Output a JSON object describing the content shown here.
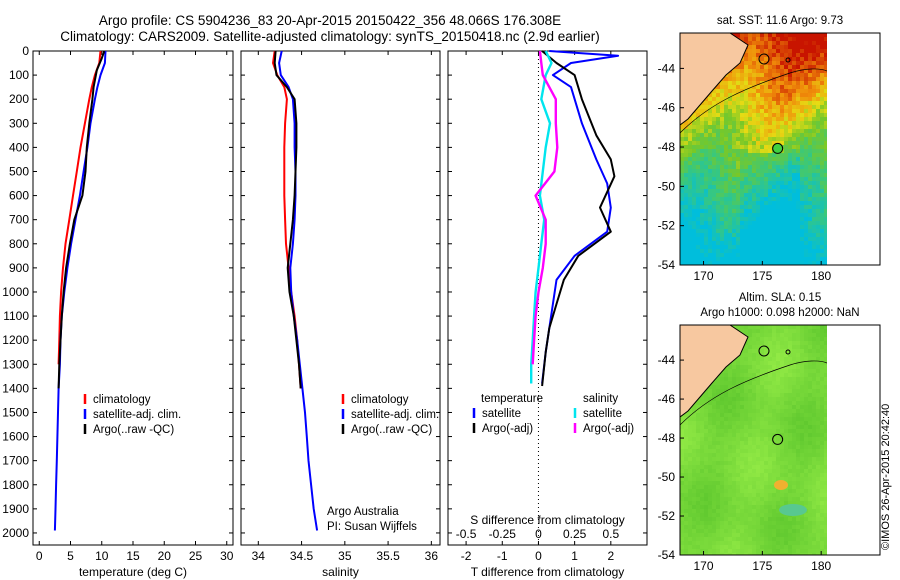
{
  "header": {
    "title_line1": "Argo profile: CS 5904236_83 20-Apr-2015 20150422_356 48.066S 176.308E",
    "title_line2": "Climatology: CARS2009. Satellite-adjusted climatology: synTS_20150418.nc (2.9d earlier)"
  },
  "footer_stamp": "©IMOS 26-Apr-2015 20:42:40",
  "colors": {
    "climatology": "#ff0000",
    "satellite": "#0000ff",
    "argo": "#000000",
    "satellite_diff": "#00e5ee",
    "argo_diff": "#ff00ff"
  },
  "chart_data": [
    {
      "id": "temperature",
      "type": "line",
      "xlabel": "temperature (deg C)",
      "ylabel": "",
      "xlim": [
        -1,
        31
      ],
      "ylim": [
        2050,
        0
      ],
      "xticks": [
        "0",
        "5",
        "10",
        "15",
        "20",
        "25",
        "30"
      ],
      "yticks": [
        "0",
        "100",
        "200",
        "300",
        "400",
        "500",
        "600",
        "700",
        "800",
        "900",
        "1000",
        "1100",
        "1200",
        "1300",
        "1400",
        "1500",
        "1600",
        "1700",
        "1800",
        "1900",
        "2000"
      ],
      "legend": [
        "climatology",
        "satellite-adj. clim.",
        "Argo(..raw -QC)"
      ],
      "series": [
        {
          "name": "climatology",
          "color": "#ff0000",
          "points": [
            [
              9.8,
              0
            ],
            [
              9.6,
              50
            ],
            [
              8.9,
              100
            ],
            [
              8.4,
              150
            ],
            [
              8.0,
              200
            ],
            [
              7.3,
              300
            ],
            [
              6.6,
              400
            ],
            [
              6.0,
              500
            ],
            [
              5.4,
              600
            ],
            [
              4.8,
              700
            ],
            [
              4.2,
              800
            ],
            [
              3.8,
              900
            ],
            [
              3.5,
              1000
            ],
            [
              3.3,
              1100
            ],
            [
              3.2,
              1200
            ],
            [
              3.1,
              1300
            ]
          ]
        },
        {
          "name": "satellite-adj. clim.",
          "color": "#0000ff",
          "points": [
            [
              10.6,
              0
            ],
            [
              10.5,
              50
            ],
            [
              9.8,
              100
            ],
            [
              9.3,
              150
            ],
            [
              8.9,
              200
            ],
            [
              8.2,
              300
            ],
            [
              7.7,
              400
            ],
            [
              7.1,
              500
            ],
            [
              6.5,
              600
            ],
            [
              5.8,
              700
            ],
            [
              5.1,
              800
            ],
            [
              4.5,
              900
            ],
            [
              4.0,
              1000
            ],
            [
              3.6,
              1100
            ],
            [
              3.4,
              1200
            ],
            [
              3.3,
              1300
            ],
            [
              3.1,
              1400
            ],
            [
              3.0,
              1500
            ],
            [
              2.9,
              1600
            ],
            [
              2.8,
              1700
            ],
            [
              2.7,
              1800
            ],
            [
              2.6,
              1900
            ],
            [
              2.5,
              1990
            ]
          ]
        },
        {
          "name": "Argo(..raw -QC)",
          "color": "#000000",
          "points": [
            [
              10.4,
              0
            ],
            [
              10.0,
              30
            ],
            [
              9.2,
              80
            ],
            [
              8.7,
              150
            ],
            [
              8.5,
              200
            ],
            [
              8.0,
              300
            ],
            [
              7.6,
              400
            ],
            [
              7.4,
              500
            ],
            [
              6.9,
              600
            ],
            [
              5.6,
              700
            ],
            [
              4.9,
              800
            ],
            [
              4.3,
              900
            ],
            [
              3.9,
              1000
            ],
            [
              3.6,
              1100
            ],
            [
              3.4,
              1200
            ],
            [
              3.2,
              1300
            ],
            [
              3.1,
              1400
            ]
          ]
        }
      ]
    },
    {
      "id": "salinity",
      "type": "line",
      "xlabel": "salinity",
      "ylabel": "",
      "xlim": [
        33.8,
        36.1
      ],
      "ylim": [
        2050,
        0
      ],
      "xticks": [
        "34",
        "34.5",
        "35",
        "35.5",
        "36"
      ],
      "legend": [
        "climatology",
        "satellite-adj. clim.",
        "Argo(..raw -QC)"
      ],
      "annotation_line1": "Argo Australia",
      "annotation_line2": "PI: Susan Wijffels",
      "series": [
        {
          "name": "climatology",
          "color": "#ff0000",
          "points": [
            [
              34.19,
              0
            ],
            [
              34.17,
              50
            ],
            [
              34.22,
              100
            ],
            [
              34.3,
              150
            ],
            [
              34.33,
              200
            ],
            [
              34.31,
              300
            ],
            [
              34.3,
              400
            ],
            [
              34.3,
              500
            ],
            [
              34.3,
              600
            ],
            [
              34.31,
              700
            ],
            [
              34.32,
              800
            ],
            [
              34.35,
              900
            ],
            [
              34.38,
              1000
            ],
            [
              34.42,
              1100
            ],
            [
              34.45,
              1200
            ],
            [
              34.47,
              1300
            ],
            [
              34.49,
              1400
            ]
          ]
        },
        {
          "name": "satellite-adj. clim.",
          "color": "#0000ff",
          "points": [
            [
              34.27,
              0
            ],
            [
              34.24,
              50
            ],
            [
              34.26,
              100
            ],
            [
              34.35,
              150
            ],
            [
              34.4,
              200
            ],
            [
              34.42,
              300
            ],
            [
              34.42,
              400
            ],
            [
              34.43,
              500
            ],
            [
              34.43,
              600
            ],
            [
              34.42,
              700
            ],
            [
              34.4,
              800
            ],
            [
              34.37,
              900
            ],
            [
              34.38,
              1000
            ],
            [
              34.41,
              1100
            ],
            [
              34.45,
              1200
            ],
            [
              34.48,
              1300
            ],
            [
              34.51,
              1400
            ],
            [
              34.54,
              1500
            ],
            [
              34.56,
              1600
            ],
            [
              34.58,
              1700
            ],
            [
              34.61,
              1800
            ],
            [
              34.64,
              1900
            ],
            [
              34.68,
              1990
            ]
          ]
        },
        {
          "name": "Argo(..raw -QC)",
          "color": "#000000",
          "points": [
            [
              34.2,
              0
            ],
            [
              34.19,
              50
            ],
            [
              34.21,
              100
            ],
            [
              34.33,
              150
            ],
            [
              34.42,
              200
            ],
            [
              34.44,
              300
            ],
            [
              34.44,
              400
            ],
            [
              34.43,
              500
            ],
            [
              34.42,
              600
            ],
            [
              34.4,
              700
            ],
            [
              34.37,
              800
            ],
            [
              34.34,
              900
            ],
            [
              34.36,
              1000
            ],
            [
              34.41,
              1100
            ],
            [
              34.44,
              1200
            ],
            [
              34.47,
              1300
            ],
            [
              34.49,
              1400
            ]
          ]
        }
      ]
    },
    {
      "id": "difference",
      "type": "line",
      "xlabel": "T difference from climatology",
      "top_label": "S difference from climatology",
      "xlim": [
        -2.5,
        3
      ],
      "ylim": [
        2050,
        0
      ],
      "xticks": [
        "-2",
        "-1",
        "0",
        "1",
        "2"
      ],
      "sticks": [
        "-0.5",
        "-0.25",
        "0",
        "0.25",
        "0.5"
      ],
      "legend_header_t": "temperature",
      "legend_header_s": "salinity",
      "legend_t": [
        "satellite",
        "Argo(-adj)"
      ],
      "legend_s": [
        "satellite",
        "Argo(-adj)"
      ],
      "series": [
        {
          "name": "temperature satellite",
          "color": "#0000ff",
          "points": [
            [
              0.3,
              0
            ],
            [
              2.2,
              20
            ],
            [
              0.9,
              50
            ],
            [
              0.4,
              100
            ],
            [
              0.9,
              150
            ],
            [
              1.2,
              300
            ],
            [
              1.6,
              450
            ],
            [
              1.9,
              550
            ],
            [
              2.0,
              650
            ],
            [
              1.9,
              750
            ],
            [
              1.0,
              850
            ],
            [
              0.5,
              950
            ],
            [
              0.4,
              1050
            ],
            [
              0.3,
              1150
            ],
            [
              0.2,
              1250
            ],
            [
              0.1,
              1380
            ]
          ]
        },
        {
          "name": "temperature Argo(-adj)",
          "color": "#000000",
          "points": [
            [
              0.1,
              0
            ],
            [
              0.5,
              50
            ],
            [
              1.0,
              100
            ],
            [
              1.2,
              200
            ],
            [
              1.6,
              350
            ],
            [
              2.0,
              450
            ],
            [
              2.1,
              520
            ],
            [
              1.7,
              650
            ],
            [
              2.0,
              750
            ],
            [
              1.1,
              850
            ],
            [
              0.7,
              950
            ],
            [
              0.5,
              1050
            ],
            [
              0.3,
              1150
            ],
            [
              0.2,
              1250
            ],
            [
              0.1,
              1390
            ]
          ]
        },
        {
          "name": "salinity satellite",
          "color": "#00e5ee",
          "points": [
            [
              0.05,
              0
            ],
            [
              0.09,
              50
            ],
            [
              0.05,
              100
            ],
            [
              0.02,
              200
            ],
            [
              0.08,
              300
            ],
            [
              0.05,
              400
            ],
            [
              0.03,
              500
            ],
            [
              0.01,
              600
            ],
            [
              0.04,
              700
            ],
            [
              0.02,
              800
            ],
            [
              0.0,
              900
            ],
            [
              -0.02,
              1000
            ],
            [
              -0.03,
              1100
            ],
            [
              -0.04,
              1200
            ],
            [
              -0.05,
              1300
            ],
            [
              -0.05,
              1380
            ]
          ]
        },
        {
          "name": "salinity Argo(-adj)",
          "color": "#ff00ff",
          "points": [
            [
              0.01,
              0
            ],
            [
              0.02,
              50
            ],
            [
              0.03,
              100
            ],
            [
              0.12,
              200
            ],
            [
              0.12,
              300
            ],
            [
              0.13,
              400
            ],
            [
              0.11,
              500
            ],
            [
              -0.02,
              600
            ],
            [
              0.05,
              700
            ],
            [
              0.05,
              800
            ],
            [
              0.03,
              900
            ],
            [
              0.0,
              1000
            ],
            [
              -0.02,
              1100
            ],
            [
              -0.03,
              1200
            ],
            [
              -0.04,
              1300
            ]
          ]
        }
      ]
    },
    {
      "id": "sst_map",
      "type": "heatmap",
      "title": "sat. SST: 11.6  Argo: 9.73",
      "xticks": [
        "170",
        "175",
        "180"
      ],
      "yticks": [
        "-44",
        "-46",
        "-48",
        "-50",
        "-52",
        "-54"
      ],
      "xlim": [
        168,
        185
      ],
      "ylim": [
        -54,
        -42.2
      ],
      "data_xlim": [
        168,
        180
      ],
      "argo_position": [
        176.3,
        -48.07
      ]
    },
    {
      "id": "sla_map",
      "type": "heatmap",
      "title_line1": "Altim. SLA: 0.15",
      "title_line2": "Argo h1000: 0.098  h2000: NaN",
      "xticks": [
        "170",
        "175",
        "180"
      ],
      "yticks": [
        "-44",
        "-46",
        "-48",
        "-50",
        "-52",
        "-54"
      ],
      "xlim": [
        168,
        185
      ],
      "ylim": [
        -54,
        -42.2
      ],
      "data_xlim": [
        168,
        180
      ],
      "argo_position": [
        176.3,
        -48.07
      ]
    }
  ]
}
